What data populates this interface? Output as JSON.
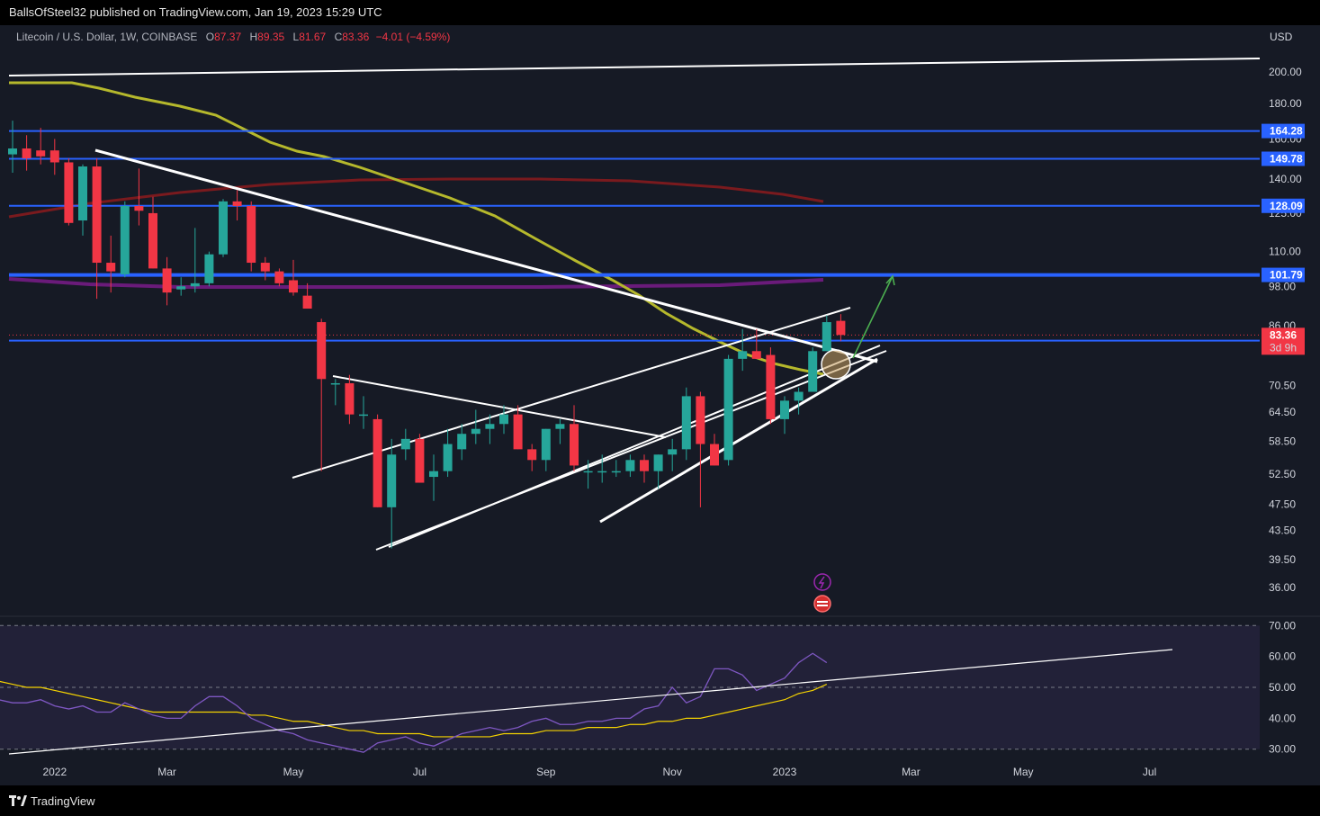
{
  "publisher_line": "BallsOfSteel32 published on TradingView.com, Jan 19, 2023 15:29 UTC",
  "symbol": {
    "title": "Litecoin / U.S. Dollar, 1W, COINBASE",
    "open_label": "O",
    "open": "87.37",
    "high_label": "H",
    "high": "89.35",
    "low_label": "L",
    "low": "81.67",
    "close_label": "C",
    "close": "83.36",
    "change": "−4.01 (−4.59%)"
  },
  "currency": "USD",
  "footer_brand": "TradingView",
  "colors": {
    "background": "#161a25",
    "up": "#26a69a",
    "down": "#f23645",
    "horizontal_level": "#2962ff",
    "ma_yellow": "#b5b82c",
    "ma_red": "#7a1a1e",
    "ma_purple": "#6a1b7a",
    "rsi_line": "#7e57c2",
    "rsi_ma": "#f5d300",
    "arrow": "#4caf50"
  },
  "chart_data": [
    {
      "type": "candlestick",
      "title": "Litecoin / U.S. Dollar, 1W, COINBASE",
      "scale": "log",
      "ylim": [
        33.5,
        220
      ],
      "price_ticks": [
        "200.00",
        "180.00",
        "160.00",
        "140.00",
        "125.00",
        "110.00",
        "98.00",
        "86.00",
        "70.50",
        "64.50",
        "58.50",
        "52.50",
        "47.50",
        "43.50",
        "39.50",
        "36.00"
      ],
      "time_ticks": [
        {
          "label": "2022",
          "week": 3
        },
        {
          "label": "Mar",
          "week": 11
        },
        {
          "label": "May",
          "week": 20
        },
        {
          "label": "Jul",
          "week": 29
        },
        {
          "label": "Sep",
          "week": 38
        },
        {
          "label": "Nov",
          "week": 47
        },
        {
          "label": "2023",
          "week": 55
        },
        {
          "label": "Mar",
          "week": 64
        },
        {
          "label": "May",
          "week": 72
        },
        {
          "label": "Jul",
          "week": 81
        }
      ],
      "candles": [
        {
          "o": 152,
          "h": 170,
          "l": 143,
          "c": 155
        },
        {
          "o": 155,
          "h": 162,
          "l": 144,
          "c": 150
        },
        {
          "o": 154,
          "h": 166,
          "l": 147,
          "c": 151
        },
        {
          "o": 154,
          "h": 160,
          "l": 142,
          "c": 148
        },
        {
          "o": 148,
          "h": 150,
          "l": 120,
          "c": 121
        },
        {
          "o": 122,
          "h": 147,
          "l": 116,
          "c": 146
        },
        {
          "o": 146,
          "h": 150,
          "l": 94,
          "c": 106
        },
        {
          "o": 106,
          "h": 116,
          "l": 96,
          "c": 103
        },
        {
          "o": 102,
          "h": 130,
          "l": 101,
          "c": 128
        },
        {
          "o": 128,
          "h": 145,
          "l": 120,
          "c": 126
        },
        {
          "o": 125,
          "h": 132,
          "l": 104,
          "c": 104
        },
        {
          "o": 104,
          "h": 108,
          "l": 92,
          "c": 96
        },
        {
          "o": 97,
          "h": 101,
          "l": 95,
          "c": 98
        },
        {
          "o": 98,
          "h": 119,
          "l": 96,
          "c": 99
        },
        {
          "o": 99,
          "h": 110,
          "l": 98,
          "c": 109
        },
        {
          "o": 109,
          "h": 131,
          "l": 108,
          "c": 130
        },
        {
          "o": 130,
          "h": 135,
          "l": 122,
          "c": 128
        },
        {
          "o": 128,
          "h": 130,
          "l": 103,
          "c": 106
        },
        {
          "o": 106,
          "h": 108,
          "l": 100,
          "c": 103
        },
        {
          "o": 103,
          "h": 104,
          "l": 98,
          "c": 99
        },
        {
          "o": 100,
          "h": 107,
          "l": 95,
          "c": 96
        },
        {
          "o": 95,
          "h": 99,
          "l": 91,
          "c": 91
        },
        {
          "o": 87,
          "h": 88,
          "l": 53,
          "c": 72
        },
        {
          "o": 71,
          "h": 72,
          "l": 66,
          "c": 71
        },
        {
          "o": 71,
          "h": 73,
          "l": 62,
          "c": 64
        },
        {
          "o": 64,
          "h": 68,
          "l": 61,
          "c": 64
        },
        {
          "o": 63,
          "h": 64,
          "l": 47,
          "c": 47
        },
        {
          "o": 47,
          "h": 59,
          "l": 41,
          "c": 56
        },
        {
          "o": 57,
          "h": 61,
          "l": 55,
          "c": 59
        },
        {
          "o": 59,
          "h": 60,
          "l": 51,
          "c": 51
        },
        {
          "o": 52,
          "h": 56,
          "l": 48,
          "c": 53
        },
        {
          "o": 53,
          "h": 61,
          "l": 52,
          "c": 58
        },
        {
          "o": 57,
          "h": 62,
          "l": 55,
          "c": 60
        },
        {
          "o": 60,
          "h": 65,
          "l": 58,
          "c": 61
        },
        {
          "o": 61,
          "h": 64,
          "l": 58,
          "c": 62
        },
        {
          "o": 62,
          "h": 66,
          "l": 60,
          "c": 64
        },
        {
          "o": 64,
          "h": 66,
          "l": 57,
          "c": 57
        },
        {
          "o": 57,
          "h": 58,
          "l": 53,
          "c": 55
        },
        {
          "o": 55,
          "h": 61,
          "l": 53,
          "c": 61
        },
        {
          "o": 61,
          "h": 63,
          "l": 58,
          "c": 62
        },
        {
          "o": 62,
          "h": 66,
          "l": 53,
          "c": 54
        },
        {
          "o": 53,
          "h": 55,
          "l": 50,
          "c": 53
        },
        {
          "o": 53,
          "h": 56,
          "l": 51,
          "c": 53
        },
        {
          "o": 53,
          "h": 55,
          "l": 52,
          "c": 53
        },
        {
          "o": 53,
          "h": 56,
          "l": 52,
          "c": 55
        },
        {
          "o": 55,
          "h": 56,
          "l": 51,
          "c": 53
        },
        {
          "o": 53,
          "h": 56,
          "l": 50,
          "c": 56
        },
        {
          "o": 56,
          "h": 59,
          "l": 53,
          "c": 57
        },
        {
          "o": 57,
          "h": 70,
          "l": 55,
          "c": 68
        },
        {
          "o": 68,
          "h": 69,
          "l": 47,
          "c": 58
        },
        {
          "o": 58,
          "h": 60,
          "l": 54,
          "c": 54
        },
        {
          "o": 55,
          "h": 78,
          "l": 54,
          "c": 77
        },
        {
          "o": 77,
          "h": 85,
          "l": 74,
          "c": 79
        },
        {
          "o": 79,
          "h": 85,
          "l": 77,
          "c": 77
        },
        {
          "o": 78,
          "h": 80,
          "l": 62,
          "c": 63
        },
        {
          "o": 63,
          "h": 68,
          "l": 60,
          "c": 67
        },
        {
          "o": 67,
          "h": 70,
          "l": 64,
          "c": 69
        },
        {
          "o": 69,
          "h": 80,
          "l": 69,
          "c": 79
        },
        {
          "o": 79,
          "h": 89,
          "l": 79,
          "c": 87
        },
        {
          "o": 87.37,
          "h": 89.35,
          "l": 81.67,
          "c": 83.36
        }
      ],
      "horizontal_levels": [
        {
          "value": 164.28,
          "label": "164.28"
        },
        {
          "value": 149.78,
          "label": "149.78"
        },
        {
          "value": 128.09,
          "label": "128.09"
        },
        {
          "value": 101.79,
          "label": "101.79"
        },
        {
          "value": 81.82,
          "label": "81.82"
        }
      ],
      "last_price": {
        "value": 83.36,
        "label": "83.36",
        "countdown": "3d 9h"
      }
    },
    {
      "type": "line",
      "indicator": "RSI",
      "ylim": [
        27,
        73
      ],
      "ticks": [
        "70.00",
        "60.00",
        "50.00",
        "40.00",
        "30.00"
      ],
      "rsi": [
        46,
        45,
        45,
        46,
        44,
        43,
        44,
        42,
        42,
        45,
        43,
        41,
        40,
        40,
        44,
        47,
        47,
        44,
        40,
        38,
        36,
        35,
        33,
        32,
        31,
        30,
        29,
        32,
        33,
        34,
        32,
        31,
        33,
        35,
        36,
        37,
        36,
        37,
        39,
        40,
        38,
        38,
        39,
        39,
        40,
        40,
        43,
        44,
        50,
        45,
        47,
        56,
        56,
        54,
        49,
        51,
        53,
        58,
        61,
        58
      ],
      "rsi_ma": [
        52,
        51,
        50,
        50,
        49,
        48,
        47,
        46,
        45,
        44,
        43,
        42,
        42,
        42,
        42,
        42,
        42,
        42,
        41,
        41,
        40,
        39,
        39,
        38,
        37,
        36,
        36,
        35,
        35,
        35,
        35,
        34,
        34,
        34,
        34,
        34,
        35,
        35,
        35,
        36,
        36,
        36,
        37,
        37,
        37,
        38,
        38,
        39,
        39,
        40,
        40,
        41,
        42,
        43,
        44,
        45,
        46,
        48,
        49,
        51
      ]
    }
  ]
}
